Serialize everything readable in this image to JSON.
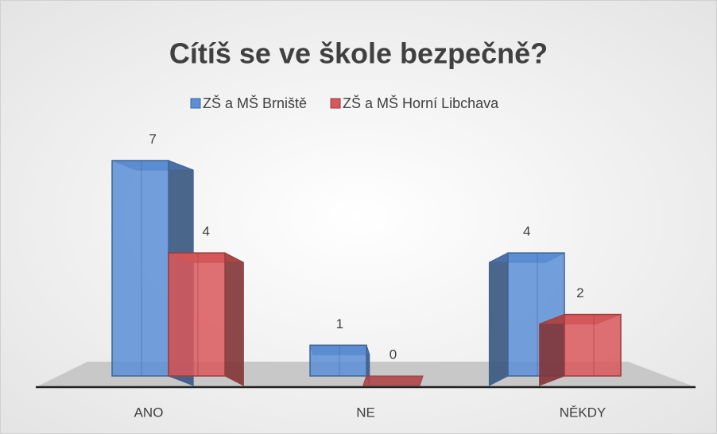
{
  "chart_data": {
    "type": "bar3d",
    "title": "Cítíš se ve škole bezpečně?",
    "categories": [
      "ANO",
      "NE",
      "NĚKDY"
    ],
    "series": [
      {
        "name": "ZŠ a MŠ Brniště",
        "color": "#5b8fd6",
        "values": [
          7,
          1,
          4
        ]
      },
      {
        "name": "ZŠ a MŠ Horní Libchava",
        "color": "#d9575a",
        "values": [
          4,
          0,
          2
        ]
      }
    ],
    "legend": "top"
  }
}
